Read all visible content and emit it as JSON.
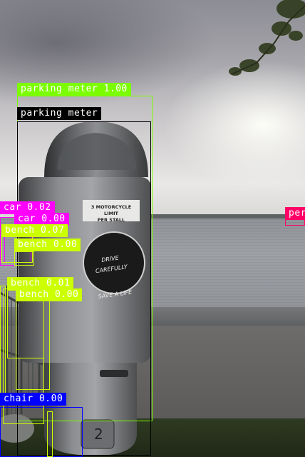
{
  "colors": {
    "parking_meter": "#7cfc00",
    "gt_box": "#000000",
    "car": "#ff00ff",
    "bench": "#ccff00",
    "chair": "#0000ff",
    "person": "#ff0066"
  },
  "meter_plate": {
    "line1": "3 MOTORCYCLE LIMIT",
    "line2": "PER STALL"
  },
  "meter_dial": {
    "top": "DRIVE CAREFULLY",
    "bottom": "SAVE A LIFE"
  },
  "meter_number": "2",
  "detections": {
    "parking_meter_pred": "parking meter 1.00",
    "parking_meter_gt": "parking meter",
    "car_1": "car 0.02",
    "car_2": "car 0.00",
    "bench_1": "bench 0.07",
    "bench_2": "bench 0.00",
    "bench_3": "bench 0.01",
    "bench_4": "bench 0.00",
    "chair_1": "chair 0.00",
    "person_1": "per"
  }
}
